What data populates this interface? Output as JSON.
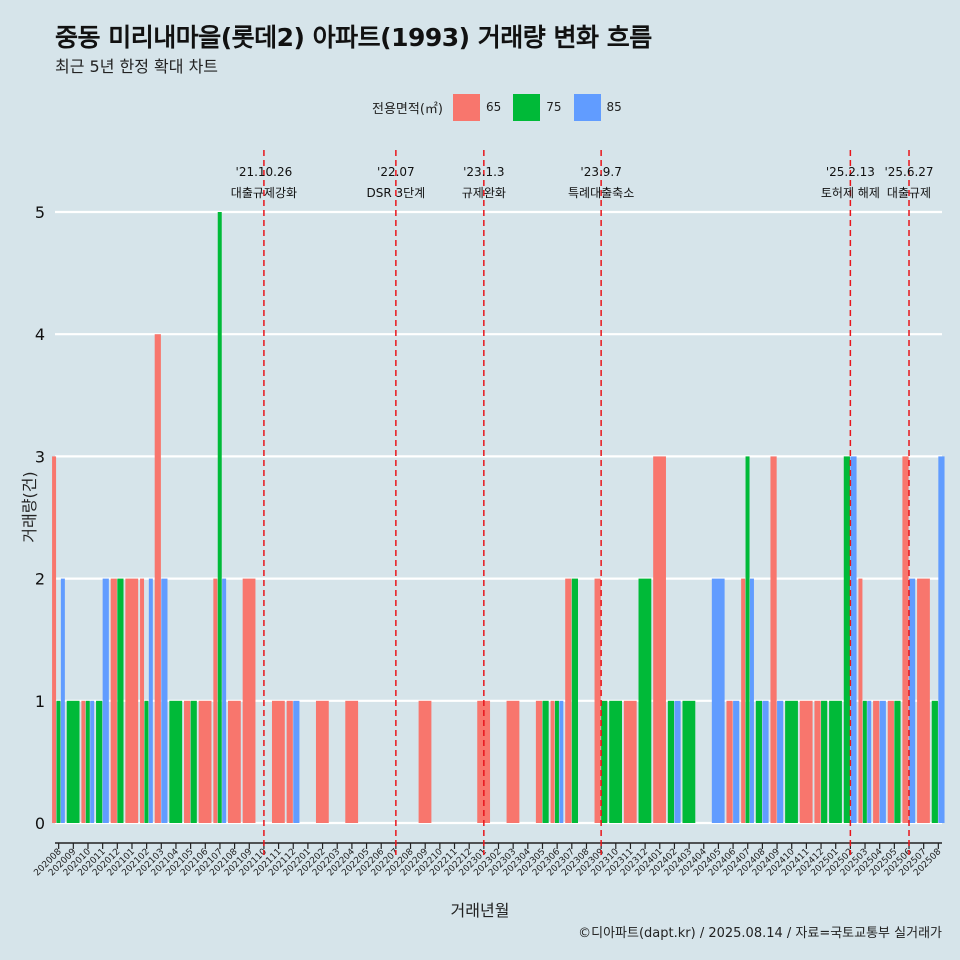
{
  "title": "중동 미리내마을(롯데2) 아파트(1993) 거래량 변화 흐름",
  "subtitle": "최근 5년 한정 확대 차트",
  "caption": "©디아파트(dapt.kr) / 2025.08.14 / 자료=국토교통부 실거래가",
  "legend": {
    "title": "전용면적(㎡)",
    "items": [
      {
        "label": "65",
        "color": "#f8766d"
      },
      {
        "label": "75",
        "color": "#00ba38"
      },
      {
        "label": "85",
        "color": "#619cff"
      }
    ]
  },
  "chart_data": {
    "type": "bar",
    "title": "중동 미리내마을(롯데2) 아파트(1993) 거래량 변화 흐름",
    "subtitle": "최근 5년 한정 확대 차트",
    "xlabel": "거래년월",
    "ylabel": "거래량(건)",
    "ylim": [
      0,
      5
    ],
    "yticks": [
      0,
      1,
      2,
      3,
      4,
      5
    ],
    "grid": true,
    "legend_position": "top",
    "categories": [
      "202008",
      "202009",
      "202010",
      "202011",
      "202012",
      "202101",
      "202102",
      "202103",
      "202104",
      "202105",
      "202106",
      "202107",
      "202108",
      "202109",
      "202110",
      "202111",
      "202112",
      "202201",
      "202202",
      "202203",
      "202204",
      "202205",
      "202206",
      "202207",
      "202208",
      "202209",
      "202210",
      "202211",
      "202212",
      "202301",
      "202302",
      "202303",
      "202304",
      "202305",
      "202306",
      "202307",
      "202308",
      "202309",
      "202310",
      "202311",
      "202312",
      "202401",
      "202402",
      "202403",
      "202404",
      "202405",
      "202406",
      "202407",
      "202408",
      "202409",
      "202410",
      "202411",
      "202412",
      "202501",
      "202502",
      "202503",
      "202504",
      "202505",
      "202506",
      "202507",
      "202508"
    ],
    "series": [
      {
        "name": "65",
        "color": "#f8766d",
        "values": [
          3,
          0,
          1,
          0,
          2,
          2,
          2,
          4,
          0,
          1,
          1,
          2,
          1,
          2,
          0,
          1,
          1,
          0,
          1,
          0,
          1,
          0,
          0,
          0,
          0,
          1,
          0,
          0,
          0,
          1,
          0,
          1,
          0,
          1,
          1,
          2,
          0,
          2,
          0,
          1,
          0,
          3,
          0,
          0,
          0,
          0,
          1,
          2,
          0,
          3,
          0,
          1,
          1,
          0,
          0,
          2,
          1,
          1,
          3,
          2,
          0
        ]
      },
      {
        "name": "75",
        "color": "#00ba38",
        "values": [
          1,
          1,
          1,
          1,
          2,
          0,
          1,
          0,
          1,
          1,
          0,
          5,
          0,
          0,
          0,
          0,
          0,
          0,
          0,
          0,
          0,
          0,
          0,
          0,
          0,
          0,
          0,
          0,
          0,
          0,
          0,
          0,
          0,
          1,
          1,
          2,
          0,
          1,
          1,
          0,
          2,
          0,
          1,
          1,
          0,
          0,
          0,
          3,
          1,
          0,
          1,
          0,
          1,
          1,
          3,
          1,
          0,
          1,
          0,
          0,
          1
        ]
      },
      {
        "name": "85",
        "color": "#619cff",
        "values": [
          2,
          0,
          1,
          2,
          0,
          0,
          2,
          2,
          0,
          0,
          0,
          2,
          0,
          0,
          0,
          0,
          1,
          0,
          0,
          0,
          0,
          0,
          0,
          0,
          0,
          0,
          0,
          0,
          0,
          0,
          0,
          0,
          0,
          0,
          1,
          0,
          0,
          0,
          0,
          0,
          0,
          0,
          1,
          0,
          0,
          2,
          1,
          2,
          1,
          1,
          0,
          0,
          0,
          0,
          3,
          1,
          1,
          0,
          2,
          0,
          3
        ]
      }
    ],
    "annotations": [
      {
        "date": "'21.10.26",
        "label": "대출규제강화",
        "x_category": "202110"
      },
      {
        "date": "'22.07",
        "label": "DSR 3단계",
        "x_category": "202207"
      },
      {
        "date": "'23.1.3",
        "label": "규제완화",
        "x_category": "202301"
      },
      {
        "date": "'23.9.7",
        "label": "특례대출축소",
        "x_category": "202309"
      },
      {
        "date": "'25.2.13",
        "label": "토허제 해제",
        "x_category": "202502"
      },
      {
        "date": "'25.6.27",
        "label": "대출규제",
        "x_category": "202506"
      }
    ]
  }
}
